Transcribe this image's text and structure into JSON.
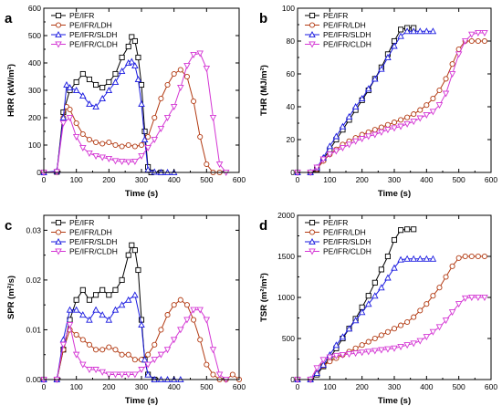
{
  "chart_data": [
    {
      "type": "line",
      "panel": "a",
      "xlabel": "Time (s)",
      "ylabel": "HRR (kW/m²)",
      "xlim": [
        0,
        600
      ],
      "ylim": [
        0,
        600
      ],
      "xticks": [
        0,
        100,
        200,
        300,
        400,
        500,
        600
      ],
      "yticks": [
        0,
        100,
        200,
        300,
        400,
        500,
        600
      ],
      "legend": "top-left",
      "series": [
        {
          "name": "PE/IFR",
          "color": "#000000",
          "marker": "square",
          "x": [
            0,
            40,
            60,
            80,
            100,
            120,
            140,
            160,
            180,
            200,
            220,
            240,
            260,
            270,
            280,
            290,
            300,
            310,
            320,
            330,
            360
          ],
          "y": [
            0,
            2,
            220,
            300,
            330,
            360,
            340,
            320,
            310,
            330,
            360,
            420,
            460,
            495,
            480,
            420,
            320,
            150,
            20,
            0,
            0
          ]
        },
        {
          "name": "PE/IFR/LDH",
          "color": "#b23a12",
          "marker": "circle",
          "x": [
            0,
            40,
            60,
            70,
            80,
            100,
            120,
            140,
            160,
            180,
            200,
            220,
            240,
            260,
            280,
            300,
            320,
            340,
            360,
            380,
            400,
            420,
            440,
            460,
            480,
            500,
            520,
            540
          ],
          "y": [
            0,
            2,
            200,
            240,
            230,
            180,
            140,
            120,
            110,
            105,
            110,
            100,
            95,
            100,
            95,
            100,
            130,
            200,
            270,
            320,
            360,
            375,
            350,
            260,
            130,
            30,
            0,
            0
          ]
        },
        {
          "name": "PE/IFR/SLDH",
          "color": "#1a1ae0",
          "marker": "triangle-up",
          "x": [
            0,
            40,
            60,
            70,
            80,
            100,
            120,
            140,
            160,
            180,
            200,
            220,
            240,
            260,
            270,
            280,
            290,
            300,
            310,
            320,
            340,
            360,
            380,
            400
          ],
          "y": [
            0,
            5,
            200,
            320,
            310,
            300,
            280,
            250,
            240,
            270,
            300,
            330,
            370,
            400,
            405,
            390,
            340,
            250,
            120,
            10,
            2,
            0,
            0,
            0
          ]
        },
        {
          "name": "PE/IFR/CLDH",
          "color": "#d437d4",
          "marker": "triangle-down",
          "x": [
            0,
            40,
            60,
            80,
            100,
            120,
            140,
            160,
            180,
            200,
            220,
            240,
            260,
            280,
            300,
            320,
            340,
            360,
            380,
            400,
            420,
            440,
            460,
            480,
            500,
            520,
            540,
            560
          ],
          "y": [
            0,
            2,
            180,
            200,
            130,
            90,
            70,
            60,
            55,
            50,
            42,
            40,
            38,
            40,
            60,
            90,
            120,
            160,
            200,
            240,
            310,
            390,
            430,
            435,
            380,
            200,
            30,
            0
          ]
        }
      ]
    },
    {
      "type": "line",
      "panel": "b",
      "xlabel": "Time (s)",
      "ylabel": "THR (MJ/m²)",
      "xlim": [
        0,
        600
      ],
      "ylim": [
        0,
        100
      ],
      "xticks": [
        0,
        100,
        200,
        300,
        400,
        500,
        600
      ],
      "yticks": [
        0,
        20,
        40,
        60,
        80,
        100
      ],
      "legend": "top-left",
      "series": [
        {
          "name": "PE/IFR",
          "color": "#000000",
          "marker": "square",
          "x": [
            0,
            40,
            60,
            80,
            100,
            120,
            140,
            160,
            180,
            200,
            220,
            240,
            260,
            280,
            300,
            320,
            340,
            360
          ],
          "y": [
            0,
            0,
            2,
            8,
            14,
            20,
            26,
            32,
            38,
            44,
            50,
            57,
            64,
            72,
            80,
            87,
            88,
            88
          ]
        },
        {
          "name": "PE/IFR/LDH",
          "color": "#b23a12",
          "marker": "circle",
          "x": [
            0,
            40,
            60,
            80,
            100,
            120,
            140,
            160,
            180,
            200,
            220,
            240,
            260,
            280,
            300,
            320,
            340,
            360,
            380,
            400,
            420,
            440,
            460,
            480,
            500,
            520,
            540,
            560,
            580
          ],
          "y": [
            0,
            0,
            2,
            7,
            11,
            14,
            17,
            19,
            21,
            23,
            24.5,
            26,
            27.5,
            29,
            30.5,
            32,
            33.5,
            35.5,
            38,
            41,
            45,
            50,
            57,
            66,
            75,
            80,
            80,
            80,
            80
          ]
        },
        {
          "name": "PE/IFR/SLDH",
          "color": "#1a1ae0",
          "marker": "triangle-up",
          "x": [
            0,
            40,
            60,
            80,
            100,
            120,
            140,
            160,
            180,
            200,
            220,
            240,
            260,
            280,
            300,
            320,
            340,
            360,
            380,
            400,
            420
          ],
          "y": [
            0,
            0,
            3,
            9,
            16,
            22,
            28,
            34,
            40,
            45,
            51,
            57,
            63,
            70,
            77,
            83,
            86,
            86,
            86,
            86,
            86
          ]
        },
        {
          "name": "PE/IFR/CLDH",
          "color": "#d437d4",
          "marker": "triangle-down",
          "x": [
            0,
            40,
            60,
            80,
            100,
            120,
            140,
            160,
            180,
            200,
            220,
            240,
            260,
            280,
            300,
            320,
            340,
            360,
            380,
            400,
            420,
            440,
            460,
            480,
            500,
            520,
            540,
            560,
            580
          ],
          "y": [
            0,
            0,
            3,
            8,
            11,
            13,
            15,
            17,
            19,
            20.5,
            22,
            23,
            24.5,
            26,
            27,
            28,
            29.5,
            31,
            33,
            35,
            37,
            41,
            48,
            60,
            72,
            80,
            84,
            85,
            85
          ]
        }
      ]
    },
    {
      "type": "line",
      "panel": "c",
      "xlabel": "Time (s)",
      "ylabel": "SPR (m²/s)",
      "xlim": [
        0,
        600
      ],
      "ylim": [
        0,
        0.033
      ],
      "xticks": [
        0,
        100,
        200,
        300,
        400,
        500,
        600
      ],
      "yticks": [
        0.0,
        0.01,
        0.02,
        0.03
      ],
      "ytick_labels": [
        "0.00",
        "0.01",
        "0.02",
        "0.03"
      ],
      "legend": "top-left",
      "series": [
        {
          "name": "PE/IFR",
          "color": "#000000",
          "marker": "square",
          "x": [
            0,
            40,
            60,
            80,
            100,
            120,
            140,
            160,
            180,
            200,
            220,
            240,
            260,
            270,
            280,
            290,
            300,
            310,
            320,
            340
          ],
          "y": [
            0,
            0,
            0.006,
            0.012,
            0.016,
            0.018,
            0.016,
            0.017,
            0.018,
            0.017,
            0.018,
            0.02,
            0.025,
            0.027,
            0.026,
            0.022,
            0.012,
            0.004,
            0.001,
            0
          ]
        },
        {
          "name": "PE/IFR/LDH",
          "color": "#b23a12",
          "marker": "circle",
          "x": [
            0,
            40,
            60,
            80,
            100,
            120,
            140,
            160,
            180,
            200,
            220,
            240,
            260,
            280,
            300,
            320,
            340,
            360,
            380,
            400,
            420,
            440,
            460,
            480,
            500,
            520,
            540,
            560,
            580,
            600
          ],
          "y": [
            0,
            0,
            0.006,
            0.01,
            0.009,
            0.008,
            0.007,
            0.006,
            0.006,
            0.0065,
            0.006,
            0.005,
            0.005,
            0.004,
            0.004,
            0.005,
            0.007,
            0.01,
            0.013,
            0.015,
            0.016,
            0.015,
            0.012,
            0.008,
            0.003,
            0.001,
            0,
            0,
            0.001,
            0
          ]
        },
        {
          "name": "PE/IFR/SLDH",
          "color": "#1a1ae0",
          "marker": "triangle-up",
          "x": [
            0,
            40,
            60,
            80,
            100,
            120,
            140,
            160,
            180,
            200,
            220,
            240,
            260,
            280,
            300,
            310,
            320,
            340,
            360,
            380,
            400,
            420
          ],
          "y": [
            0,
            0,
            0.008,
            0.014,
            0.014,
            0.013,
            0.012,
            0.014,
            0.013,
            0.012,
            0.014,
            0.015,
            0.016,
            0.017,
            0.011,
            0.004,
            0.001,
            0,
            0,
            0,
            0,
            0
          ]
        },
        {
          "name": "PE/IFR/CLDH",
          "color": "#d437d4",
          "marker": "triangle-down",
          "x": [
            0,
            40,
            60,
            80,
            100,
            120,
            140,
            160,
            180,
            200,
            220,
            240,
            260,
            280,
            300,
            320,
            340,
            360,
            380,
            400,
            420,
            440,
            460,
            480,
            500,
            520,
            540,
            560
          ],
          "y": [
            0,
            0,
            0.007,
            0.011,
            0.005,
            0.003,
            0.002,
            0.002,
            0.0015,
            0.001,
            0.001,
            0.001,
            0.001,
            0.001,
            0.002,
            0.003,
            0.004,
            0.005,
            0.006,
            0.008,
            0.01,
            0.012,
            0.014,
            0.014,
            0.012,
            0.006,
            0.001,
            0
          ]
        }
      ]
    },
    {
      "type": "line",
      "panel": "d",
      "xlabel": "Time (s)",
      "ylabel": "TSR (m²/m²)",
      "xlim": [
        0,
        600
      ],
      "ylim": [
        0,
        2000
      ],
      "xticks": [
        0,
        100,
        200,
        300,
        400,
        500,
        600
      ],
      "yticks": [
        0,
        500,
        1000,
        1500,
        2000
      ],
      "legend": "top-left",
      "series": [
        {
          "name": "PE/IFR",
          "color": "#000000",
          "marker": "square",
          "x": [
            0,
            40,
            60,
            80,
            100,
            120,
            140,
            160,
            180,
            200,
            220,
            240,
            260,
            280,
            300,
            320,
            340,
            360
          ],
          "y": [
            0,
            0,
            60,
            160,
            260,
            380,
            500,
            620,
            740,
            880,
            1020,
            1180,
            1340,
            1500,
            1700,
            1820,
            1830,
            1830
          ]
        },
        {
          "name": "PE/IFR/LDH",
          "color": "#b23a12",
          "marker": "circle",
          "x": [
            0,
            40,
            60,
            80,
            100,
            120,
            140,
            160,
            180,
            200,
            220,
            240,
            260,
            280,
            300,
            320,
            340,
            360,
            380,
            400,
            420,
            440,
            460,
            480,
            500,
            520,
            540,
            560,
            580
          ],
          "y": [
            0,
            0,
            80,
            170,
            220,
            260,
            300,
            340,
            380,
            420,
            460,
            500,
            540,
            580,
            620,
            660,
            700,
            760,
            840,
            920,
            1020,
            1120,
            1250,
            1380,
            1480,
            1500,
            1500,
            1500,
            1500
          ]
        },
        {
          "name": "PE/IFR/SLDH",
          "color": "#1a1ae0",
          "marker": "triangle-up",
          "x": [
            0,
            40,
            60,
            80,
            100,
            120,
            140,
            160,
            180,
            200,
            220,
            240,
            260,
            280,
            300,
            320,
            340,
            360,
            380,
            400,
            420
          ],
          "y": [
            0,
            0,
            80,
            180,
            300,
            420,
            520,
            620,
            720,
            820,
            920,
            1020,
            1120,
            1240,
            1360,
            1460,
            1470,
            1470,
            1470,
            1470,
            1470
          ]
        },
        {
          "name": "PE/IFR/CLDH",
          "color": "#d437d4",
          "marker": "triangle-down",
          "x": [
            0,
            40,
            60,
            80,
            100,
            120,
            140,
            160,
            180,
            200,
            220,
            240,
            260,
            280,
            300,
            320,
            340,
            360,
            380,
            400,
            420,
            440,
            460,
            480,
            500,
            520,
            540,
            560,
            580
          ],
          "y": [
            0,
            0,
            140,
            240,
            270,
            290,
            300,
            310,
            320,
            330,
            340,
            350,
            360,
            370,
            380,
            400,
            420,
            440,
            470,
            520,
            580,
            640,
            720,
            820,
            920,
            990,
            1000,
            1000,
            1000
          ]
        }
      ]
    }
  ]
}
